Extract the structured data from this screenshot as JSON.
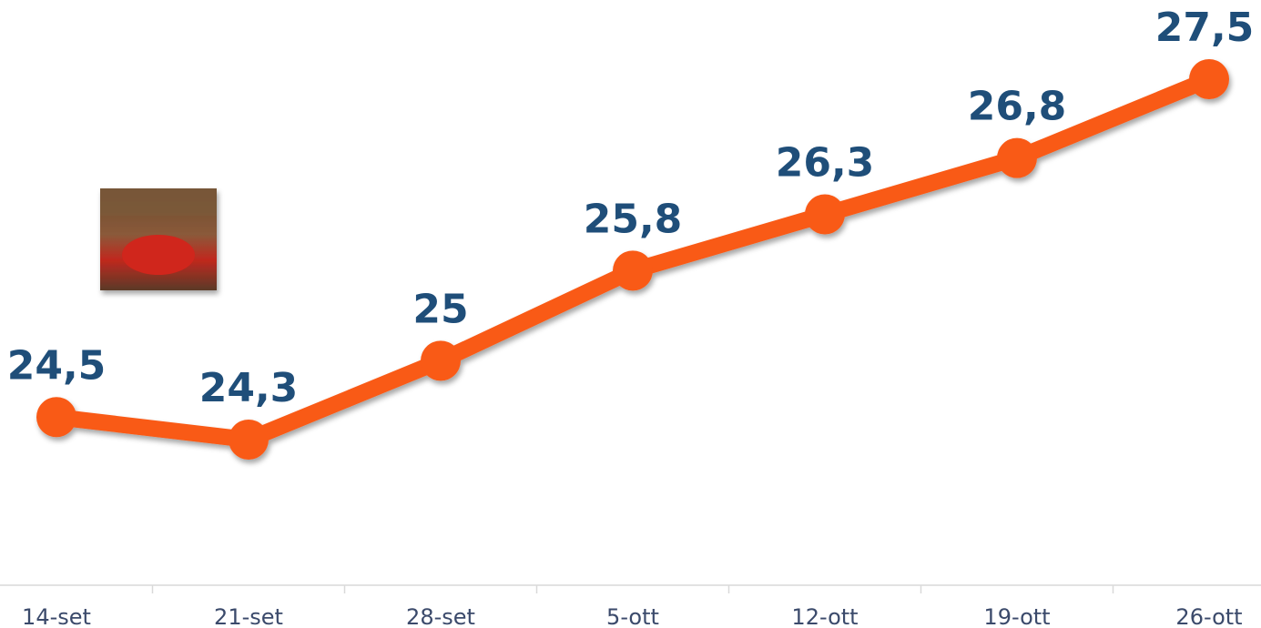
{
  "chart_data": {
    "type": "line",
    "categories": [
      "14-set",
      "21-set",
      "28-set",
      "5-ott",
      "12-ott",
      "19-ott",
      "26-ott"
    ],
    "series": [
      {
        "color": "#f95a16",
        "values": [
          24.5,
          24.3,
          25,
          25.8,
          26.3,
          26.8,
          27.5
        ],
        "value_labels": [
          "24,5",
          "24,3",
          "25",
          "25,8",
          "26,3",
          "26,8",
          "27,5"
        ]
      }
    ]
  }
}
